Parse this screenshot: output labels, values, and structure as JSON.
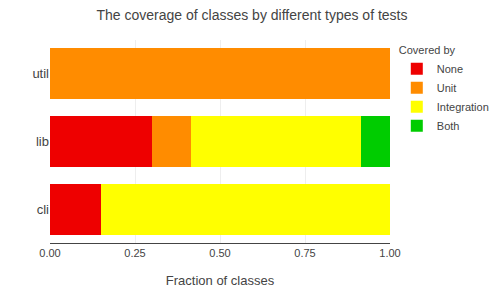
{
  "chart_data": {
    "type": "bar",
    "orientation": "horizontal",
    "stacked": true,
    "title": "The coverage of classes by different types of tests",
    "xlabel": "Fraction of classes",
    "legend_title": "Covered by",
    "legend": "upper right",
    "grid": true,
    "categories": [
      "cli",
      "lib",
      "util"
    ],
    "series": [
      {
        "name": "None",
        "color": "#EE0000",
        "values": [
          0.15,
          0.3,
          0.0
        ]
      },
      {
        "name": "Unit",
        "color": "#FF8C00",
        "values": [
          0.0,
          0.115,
          1.0
        ]
      },
      {
        "name": "Integration",
        "color": "#FFFF00",
        "values": [
          0.85,
          0.5,
          0.0
        ]
      },
      {
        "name": "Both",
        "color": "#00CC00",
        "values": [
          0.0,
          0.085,
          0.0
        ]
      }
    ],
    "xlim": [
      0.0,
      1.0
    ],
    "xticks": [
      {
        "value": 0.0,
        "label": "0.00"
      },
      {
        "value": 0.25,
        "label": "0.25"
      },
      {
        "value": 0.5,
        "label": "0.50"
      },
      {
        "value": 0.75,
        "label": "0.75"
      },
      {
        "value": 1.0,
        "label": "1.00"
      }
    ]
  }
}
